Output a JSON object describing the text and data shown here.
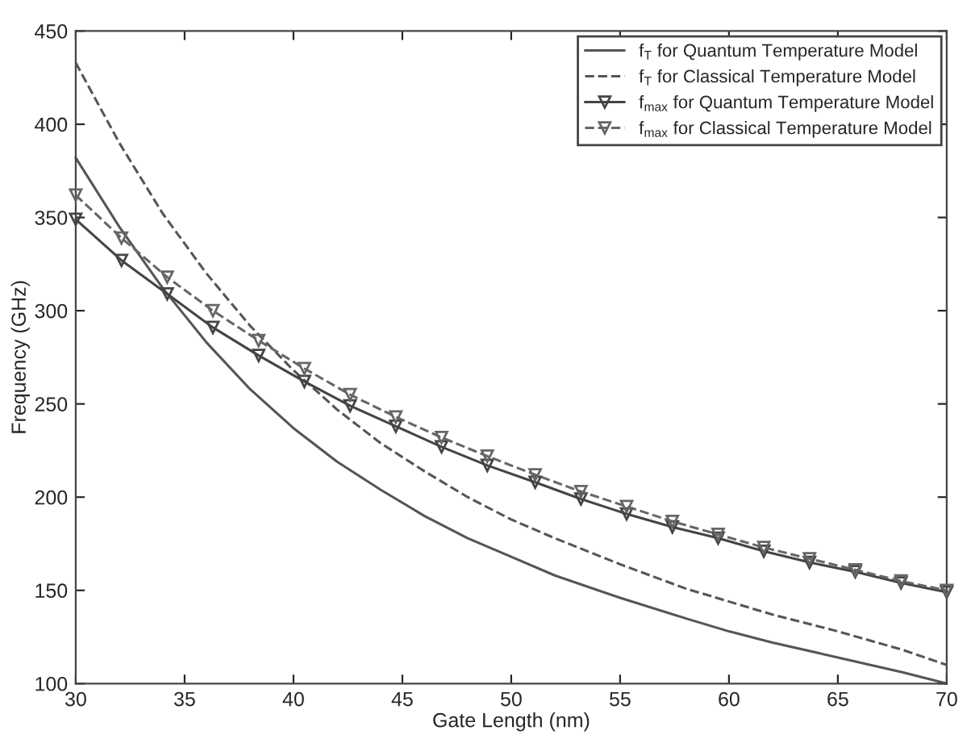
{
  "chart_data": {
    "type": "line",
    "xlabel": "Gate Length (nm)",
    "ylabel": "Frequency (GHz)",
    "xlim": [
      30,
      70
    ],
    "ylim": [
      100,
      450
    ],
    "xticks": [
      30,
      35,
      40,
      45,
      50,
      55,
      60,
      65,
      70
    ],
    "yticks": [
      100,
      150,
      200,
      250,
      300,
      350,
      400,
      450
    ],
    "grid": false,
    "legend": "top right",
    "series": [
      {
        "name": "f$_{T}$ for Quantum Temperature Model",
        "color": "#555555",
        "line_style": "solid",
        "marker": "none",
        "x": [
          30,
          32,
          34,
          36,
          38,
          40,
          42,
          44,
          46,
          48,
          50,
          52,
          55,
          58,
          60,
          62,
          65,
          68,
          70
        ],
        "values": [
          382,
          345,
          312,
          283,
          258,
          237,
          219,
          204,
          190,
          178,
          168,
          158,
          146,
          135,
          128,
          122,
          114,
          106,
          100
        ]
      },
      {
        "name": "f$_{T}$ for Classical Temperature Model",
        "color": "#555555",
        "line_style": "dashed",
        "marker": "none",
        "x": [
          30,
          32,
          34,
          36,
          38,
          40,
          42,
          44,
          46,
          48,
          50,
          52,
          55,
          58,
          60,
          62,
          65,
          68,
          70
        ],
        "values": [
          433,
          390,
          352,
          320,
          292,
          268,
          247,
          229,
          214,
          200,
          188,
          178,
          164,
          151,
          144,
          137,
          128,
          118,
          110
        ]
      },
      {
        "name": "f$_{max}$ for Quantum Temperature Model",
        "color": "#444444",
        "line_style": "solid",
        "marker": "triangle",
        "x": [
          30,
          32.1,
          34.2,
          36.3,
          38.4,
          40.5,
          42.6,
          44.7,
          46.8,
          48.9,
          51.1,
          53.2,
          55.3,
          57.4,
          59.5,
          61.6,
          63.7,
          65.8,
          67.9,
          70
        ],
        "values": [
          349,
          327,
          309,
          291,
          276,
          262,
          249,
          238,
          227,
          217,
          208,
          199,
          191,
          184,
          178,
          171,
          165,
          160,
          154,
          149
        ]
      },
      {
        "name": "f$_{max}$ for Classical Temperature Model",
        "color": "#666666",
        "line_style": "dashed",
        "marker": "triangle",
        "x": [
          30,
          32.1,
          34.2,
          36.3,
          38.4,
          40.5,
          42.6,
          44.7,
          46.8,
          48.9,
          51.1,
          53.2,
          55.3,
          57.4,
          59.5,
          61.6,
          63.7,
          65.8,
          67.9,
          70
        ],
        "values": [
          362,
          339,
          318,
          300,
          284,
          269,
          255,
          243,
          232,
          222,
          212,
          203,
          195,
          187,
          180,
          173,
          167,
          161,
          155,
          150
        ]
      }
    ]
  }
}
